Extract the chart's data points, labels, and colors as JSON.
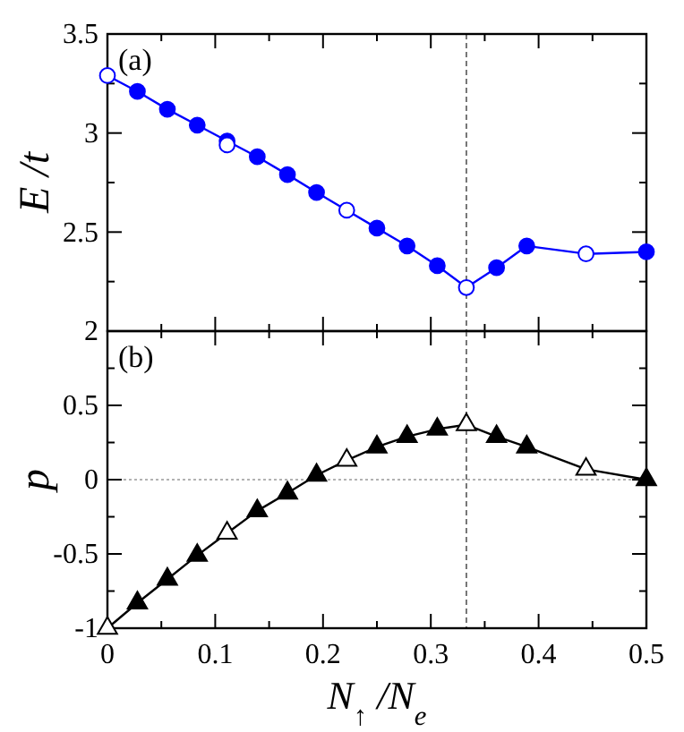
{
  "chart_data": [
    {
      "type": "line",
      "annotations": [
        "(a)"
      ],
      "ylabel": "E /t",
      "xlim": [
        0,
        0.5
      ],
      "ylim": [
        2,
        3.5
      ],
      "xticks": [
        0,
        {
          "value": 0.05,
          "label": null
        },
        0.1,
        {
          "value": 0.15,
          "label": null
        },
        0.2,
        {
          "value": 0.25,
          "label": null
        },
        0.3,
        {
          "value": 0.35,
          "label": null
        },
        0.4,
        {
          "value": 0.45,
          "label": null
        },
        0.5
      ],
      "yticks": [
        2,
        {
          "value": 2.25,
          "label": null
        },
        2.5,
        {
          "value": 2.75,
          "label": null
        },
        3,
        {
          "value": 3.25,
          "label": null
        },
        3.5
      ],
      "tick_labels": "y",
      "ref_lines": [
        {
          "axis": "x",
          "value": 0.333,
          "color": "#555555",
          "line_style": "dashed"
        }
      ],
      "series": [
        {
          "marker": "none",
          "color": "#0000ff",
          "x": [
            0,
            0.0278,
            0.0556,
            0.0833,
            0.111,
            0.139,
            0.167,
            0.194,
            0.222,
            0.25,
            0.278,
            0.306,
            0.333,
            0.361,
            0.389,
            0.444,
            0.5
          ],
          "values": [
            3.29,
            3.21,
            3.12,
            3.04,
            2.96,
            2.88,
            2.79,
            2.7,
            2.61,
            2.52,
            2.43,
            2.33,
            2.22,
            2.32,
            2.43,
            2.39,
            2.4
          ]
        },
        {
          "type": "scatter",
          "marker": "circle",
          "color": "#0000ff",
          "x": [
            0.0278,
            0.0556,
            0.0833,
            0.111,
            0.139,
            0.167,
            0.194,
            0.25,
            0.278,
            0.306,
            0.361,
            0.389,
            0.5
          ],
          "values": [
            3.21,
            3.12,
            3.04,
            2.96,
            2.88,
            2.79,
            2.7,
            2.52,
            2.43,
            2.33,
            2.32,
            2.43,
            2.4
          ]
        },
        {
          "type": "scatter",
          "marker": "circle",
          "color": "#ffffff",
          "x": [
            0,
            0.111,
            0.222,
            0.333,
            0.444
          ],
          "values": [
            3.29,
            2.94,
            2.61,
            2.22,
            2.39
          ]
        }
      ]
    },
    {
      "type": "line",
      "annotations": [
        "(b)"
      ],
      "ylabel": "p",
      "xlabel": "N$_{↑}$ /N$_{e}$",
      "xlim": [
        0,
        0.5
      ],
      "ylim": [
        -1,
        1
      ],
      "xticks": [
        0,
        {
          "value": 0.05,
          "label": null
        },
        0.1,
        {
          "value": 0.15,
          "label": null
        },
        0.2,
        {
          "value": 0.25,
          "label": null
        },
        0.3,
        {
          "value": 0.35,
          "label": null
        },
        0.4,
        {
          "value": 0.45,
          "label": null
        },
        0.5
      ],
      "yticks": [
        -1,
        {
          "value": -0.75,
          "label": null
        },
        -0.5,
        {
          "value": -0.25,
          "label": null
        },
        0,
        {
          "value": 0.25,
          "label": null
        },
        0.5,
        {
          "value": 0.75,
          "label": null
        }
      ],
      "ref_lines": [
        {
          "axis": "x",
          "value": 0.333,
          "color": "#555555",
          "line_style": "dashed"
        },
        {
          "axis": "y",
          "value": 0,
          "color": "#999999",
          "line_style": "dotted"
        }
      ],
      "series": [
        {
          "marker": "none",
          "color": "#000000",
          "x": [
            0,
            0.0278,
            0.0556,
            0.0833,
            0.111,
            0.139,
            0.167,
            0.194,
            0.222,
            0.25,
            0.278,
            0.306,
            0.333,
            0.361,
            0.389,
            0.444,
            0.5
          ],
          "values": [
            -1,
            -0.83,
            -0.67,
            -0.51,
            -0.36,
            -0.21,
            -0.09,
            0.03,
            0.13,
            0.22,
            0.29,
            0.34,
            0.37,
            0.29,
            0.22,
            0.07,
            0.0
          ]
        },
        {
          "type": "scatter",
          "marker": "triangle",
          "color": "#000000",
          "x": [
            0.0278,
            0.0556,
            0.0833,
            0.139,
            0.167,
            0.194,
            0.25,
            0.278,
            0.306,
            0.361,
            0.389,
            0.5
          ],
          "values": [
            -0.83,
            -0.67,
            -0.51,
            -0.21,
            -0.09,
            0.03,
            0.22,
            0.29,
            0.34,
            0.29,
            0.22,
            0.0
          ]
        },
        {
          "type": "scatter",
          "marker": "triangle",
          "color": "#ffffff",
          "x": [
            0,
            0.111,
            0.222,
            0.333,
            0.444
          ],
          "values": [
            -1,
            -0.36,
            0.13,
            0.37,
            0.07
          ]
        }
      ]
    }
  ]
}
